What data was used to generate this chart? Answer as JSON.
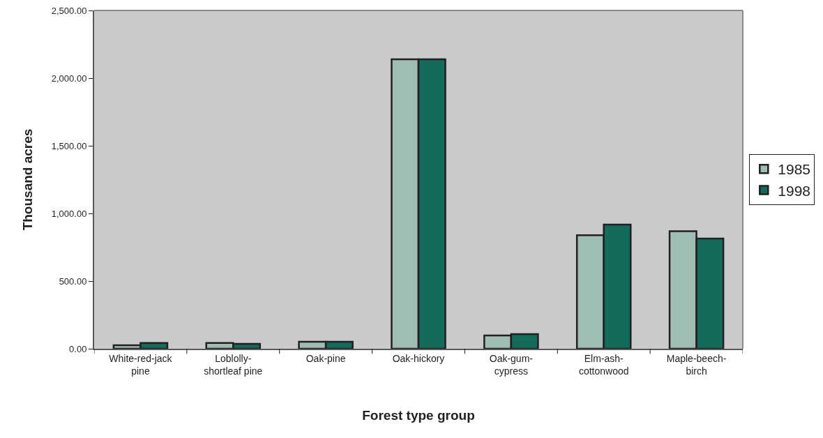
{
  "chart_data": {
    "type": "bar",
    "xlabel": "Forest type group",
    "ylabel": "Thousand acres",
    "categories": [
      "White-red-jack pine",
      "Loblolly-shortleaf pine",
      "Oak-pine",
      "Oak-hickory",
      "Oak-gum-cypress",
      "Elm-ash-cottonwood",
      "Maple-beech-birch"
    ],
    "series": [
      {
        "name": "1985",
        "color": "#9fbdb5",
        "values": [
          26,
          42,
          52,
          2139,
          98,
          839,
          869
        ]
      },
      {
        "name": "1998",
        "color": "#136b5b",
        "values": [
          42,
          36,
          52,
          2139,
          108,
          917,
          815
        ]
      }
    ],
    "ylim": [
      0,
      2500
    ],
    "yticks": [
      {
        "value": 0,
        "label": "0.00"
      },
      {
        "value": 500,
        "label": "500.00"
      },
      {
        "value": 1000,
        "label": "1,000.00"
      },
      {
        "value": 1500,
        "label": "1,500.00"
      },
      {
        "value": 2000,
        "label": "2,000.00"
      },
      {
        "value": 2500,
        "label": "2,500.00"
      }
    ],
    "grid": false,
    "legend": "right"
  }
}
